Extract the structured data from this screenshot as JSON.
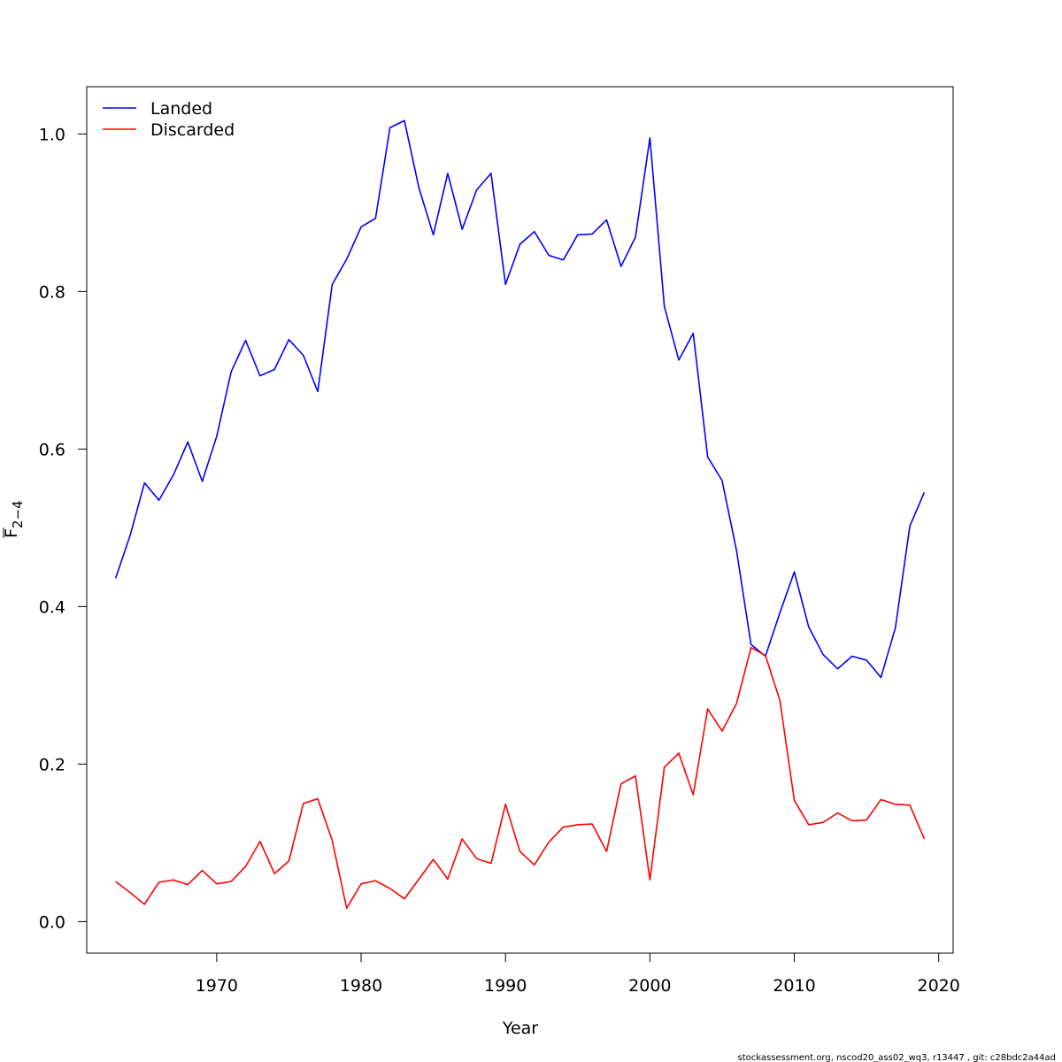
{
  "chart_data": {
    "type": "line",
    "title": "",
    "xlabel": "Year",
    "ylabel_main": "F",
    "ylabel_sub": "2−4",
    "xlim": [
      1961,
      2021
    ],
    "ylim": [
      -0.04,
      1.06
    ],
    "x_ticks": [
      1970,
      1980,
      1990,
      2000,
      2010,
      2020
    ],
    "x_tick_labels": [
      "1970",
      "1980",
      "1990",
      "2000",
      "2010",
      "2020"
    ],
    "y_ticks": [
      0.0,
      0.2,
      0.4,
      0.6,
      0.8,
      1.0
    ],
    "y_tick_labels": [
      "0.0",
      "0.2",
      "0.4",
      "0.6",
      "0.8",
      "1.0"
    ],
    "grid": false,
    "legend_position": "top-left",
    "x": [
      1963,
      1964,
      1965,
      1966,
      1967,
      1968,
      1969,
      1970,
      1971,
      1972,
      1973,
      1974,
      1975,
      1976,
      1977,
      1978,
      1979,
      1980,
      1981,
      1982,
      1983,
      1984,
      1985,
      1986,
      1987,
      1988,
      1989,
      1990,
      1991,
      1992,
      1993,
      1994,
      1995,
      1996,
      1997,
      1998,
      1999,
      2000,
      2001,
      2002,
      2003,
      2004,
      2005,
      2006,
      2007,
      2008,
      2009,
      2010,
      2011,
      2012,
      2013,
      2014,
      2015,
      2016,
      2017,
      2018,
      2019
    ],
    "series": [
      {
        "name": "Landed",
        "color": "#0000ff",
        "values": [
          0.436,
          0.49,
          0.557,
          0.535,
          0.567,
          0.609,
          0.559,
          0.616,
          0.698,
          0.738,
          0.693,
          0.701,
          0.739,
          0.719,
          0.673,
          0.809,
          0.841,
          0.882,
          0.893,
          1.008,
          1.017,
          0.932,
          0.872,
          0.95,
          0.879,
          0.929,
          0.95,
          0.809,
          0.86,
          0.876,
          0.846,
          0.84,
          0.872,
          0.873,
          0.891,
          0.832,
          0.869,
          0.995,
          0.781,
          0.713,
          0.747,
          0.59,
          0.56,
          0.471,
          0.352,
          0.337,
          0.392,
          0.444,
          0.374,
          0.339,
          0.321,
          0.337,
          0.332,
          0.31,
          0.373,
          0.502,
          0.545
        ]
      },
      {
        "name": "Discarded",
        "color": "#ff0000",
        "values": [
          0.051,
          0.037,
          0.022,
          0.05,
          0.053,
          0.047,
          0.065,
          0.048,
          0.051,
          0.07,
          0.102,
          0.061,
          0.077,
          0.15,
          0.156,
          0.103,
          0.017,
          0.048,
          0.052,
          0.042,
          0.029,
          0.054,
          0.079,
          0.054,
          0.105,
          0.08,
          0.074,
          0.149,
          0.089,
          0.072,
          0.101,
          0.12,
          0.123,
          0.124,
          0.089,
          0.175,
          0.185,
          0.053,
          0.196,
          0.214,
          0.161,
          0.27,
          0.242,
          0.277,
          0.348,
          0.338,
          0.281,
          0.154,
          0.123,
          0.126,
          0.138,
          0.128,
          0.129,
          0.155,
          0.149,
          0.148,
          0.105
        ]
      }
    ]
  },
  "footer": "stockassessment.org, nscod20_ass02_wq3, r13447 , git: c28bdc2a44ad"
}
